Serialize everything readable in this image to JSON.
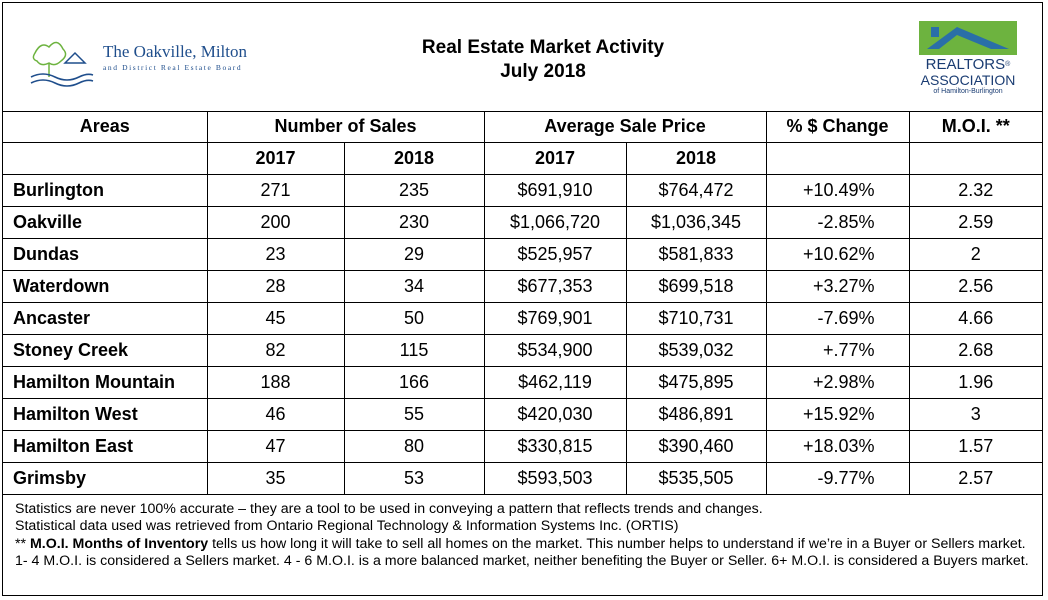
{
  "header": {
    "left_logo_name": "The Oakville, Milton",
    "left_logo_sub": "and District Real Estate Board",
    "title_line1": "Real Estate Market Activity",
    "title_line2": "July 2018",
    "right_logo_line1": "REALTORS",
    "right_logo_reg": "®",
    "right_logo_line2": "ASSOCIATION",
    "right_logo_line3": "of Hamilton-Burlington",
    "colors": {
      "left_logo_blue": "#1f4e8c",
      "right_logo_green": "#6db33f",
      "right_logo_blue": "#1a3c72"
    }
  },
  "table": {
    "headers": {
      "areas": "Areas",
      "sales": "Number of Sales",
      "price": "Average Sale Price",
      "change": "% $ Change",
      "moi": "M.O.I. **"
    },
    "subheaders": [
      "2017",
      "2018",
      "2017",
      "2018"
    ],
    "rows": [
      {
        "area": "Burlington",
        "s2017": "271",
        "s2018": "235",
        "p2017": "$691,910",
        "p2018": "$764,472",
        "change": "+10.49%",
        "moi": "2.32"
      },
      {
        "area": "Oakville",
        "s2017": "200",
        "s2018": "230",
        "p2017": "$1,066,720",
        "p2018": "$1,036,345",
        "change": "-2.85%",
        "moi": "2.59"
      },
      {
        "area": "Dundas",
        "s2017": "23",
        "s2018": "29",
        "p2017": "$525,957",
        "p2018": "$581,833",
        "change": "+10.62%",
        "moi": "2"
      },
      {
        "area": "Waterdown",
        "s2017": "28",
        "s2018": "34",
        "p2017": "$677,353",
        "p2018": "$699,518",
        "change": "+3.27%",
        "moi": "2.56"
      },
      {
        "area": "Ancaster",
        "s2017": "45",
        "s2018": "50",
        "p2017": "$769,901",
        "p2018": "$710,731",
        "change": "-7.69%",
        "moi": "4.66"
      },
      {
        "area": "Stoney Creek",
        "s2017": "82",
        "s2018": "115",
        "p2017": "$534,900",
        "p2018": "$539,032",
        "change": "+.77%",
        "moi": "2.68"
      },
      {
        "area": "Hamilton Mountain",
        "s2017": "188",
        "s2018": "166",
        "p2017": "$462,119",
        "p2018": "$475,895",
        "change": "+2.98%",
        "moi": "1.96"
      },
      {
        "area": "Hamilton West",
        "s2017": "46",
        "s2018": "55",
        "p2017": "$420,030",
        "p2018": "$486,891",
        "change": "+15.92%",
        "moi": "3"
      },
      {
        "area": "Hamilton East",
        "s2017": "47",
        "s2018": "80",
        "p2017": "$330,815",
        "p2018": "$390,460",
        "change": "+18.03%",
        "moi": "1.57"
      },
      {
        "area": "Grimsby",
        "s2017": "35",
        "s2018": "53",
        "p2017": "$593,503",
        "p2018": "$535,505",
        "change": "-9.77%",
        "moi": "2.57"
      }
    ]
  },
  "notes": {
    "line1": "Statistics are never 100% accurate – they are a tool to be used in conveying a pattern that reflects trends and changes.",
    "line2": "Statistical data used was retrieved from Ontario Regional Technology & Information Systems Inc. (ORTIS)",
    "moi_prefix": "** ",
    "moi_bold": "M.O.I. Months of Inventory",
    "moi_text": " tells us how long it will take to sell all homes on the market. This number helps to understand if we’re in a Buyer or Sellers market. 1- 4 M.O.I. is considered a Sellers market. 4 - 6 M.O.I. is a more balanced market, neither benefiting the Buyer or Seller. 6+ M.O.I. is considered a Buyers market."
  }
}
